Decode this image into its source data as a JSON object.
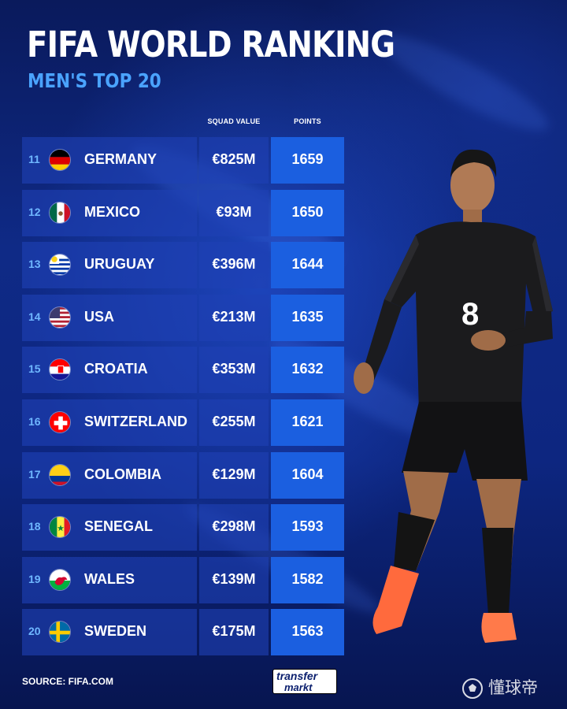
{
  "header": {
    "title": "FIFA WORLD RANKING",
    "subtitle": "MEN'S TOP 20"
  },
  "columns": {
    "squad_value": "SQUAD VALUE",
    "points": "POINTS"
  },
  "rows": [
    {
      "rank": "11",
      "country": "GERMANY",
      "squad_value": "€825M",
      "points": "1659",
      "flag": "germany-flag"
    },
    {
      "rank": "12",
      "country": "MEXICO",
      "squad_value": "€93M",
      "points": "1650",
      "flag": "mexico-flag"
    },
    {
      "rank": "13",
      "country": "URUGUAY",
      "squad_value": "€396M",
      "points": "1644",
      "flag": "uruguay-flag"
    },
    {
      "rank": "14",
      "country": "USA",
      "squad_value": "€213M",
      "points": "1635",
      "flag": "usa-flag"
    },
    {
      "rank": "15",
      "country": "CROATIA",
      "squad_value": "€353M",
      "points": "1632",
      "flag": "croatia-flag"
    },
    {
      "rank": "16",
      "country": "SWITZERLAND",
      "squad_value": "€255M",
      "points": "1621",
      "flag": "switzerland-flag"
    },
    {
      "rank": "17",
      "country": "COLOMBIA",
      "squad_value": "€129M",
      "points": "1604",
      "flag": "colombia-flag"
    },
    {
      "rank": "18",
      "country": "SENEGAL",
      "squad_value": "€298M",
      "points": "1593",
      "flag": "senegal-flag"
    },
    {
      "rank": "19",
      "country": "WALES",
      "squad_value": "€139M",
      "points": "1582",
      "flag": "wales-flag"
    },
    {
      "rank": "20",
      "country": "SWEDEN",
      "squad_value": "€175M",
      "points": "1563",
      "flag": "sweden-flag"
    }
  ],
  "player": {
    "shirt_number": "8"
  },
  "footer": {
    "source": "SOURCE: FIFA.COM",
    "logo_line1": "transfer",
    "logo_line2": "markt",
    "watermark": "懂球帝"
  },
  "colors": {
    "background": "#0b1f6e",
    "accent_blue": "#4aa3ff",
    "points_cell": "#1b5fe0",
    "rank_text": "#6fb7ff"
  }
}
